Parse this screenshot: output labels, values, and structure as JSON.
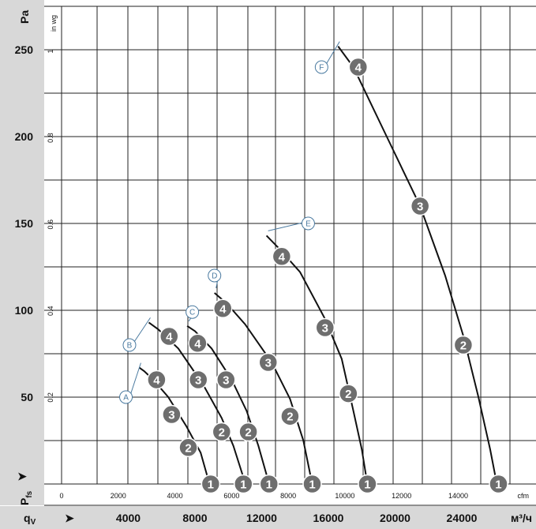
{
  "chart_data": {
    "type": "line",
    "y_axis_left": {
      "unit": "Pa",
      "symbol": "P",
      "subscript": "fs",
      "ticks": [
        50,
        100,
        150,
        200,
        250
      ],
      "range": [
        0,
        275
      ]
    },
    "y_axis_inner": {
      "unit": "in wg",
      "ticks": [
        "0.2",
        "0.4",
        "0.6",
        "0.8",
        "1"
      ]
    },
    "x_axis_inner": {
      "unit": "cfm",
      "ticks": [
        "0",
        "2000",
        "4000",
        "6000",
        "8000",
        "10000",
        "12000",
        "14000"
      ]
    },
    "x_axis_bottom": {
      "unit": "м³/ч",
      "symbol": "q",
      "subscript": "V",
      "ticks": [
        "4000",
        "8000",
        "12000",
        "16000",
        "20000",
        "24000"
      ],
      "range": [
        0,
        25000
      ]
    },
    "series": [
      {
        "name": "A",
        "points": [
          [
            4660,
            67
          ],
          [
            4950,
            65
          ],
          [
            5500,
            60
          ],
          [
            6400,
            50
          ],
          [
            7500,
            33
          ],
          [
            8340,
            18
          ],
          [
            8870,
            0
          ]
        ],
        "markers": [
          {
            "label": "4",
            "x": 5700,
            "y": 60
          },
          {
            "label": "3",
            "x": 6600,
            "y": 40
          },
          {
            "label": "2",
            "x": 7600,
            "y": 21
          },
          {
            "label": "1",
            "x": 8940,
            "y": 0
          }
        ]
      },
      {
        "name": "B",
        "points": [
          [
            5230,
            93
          ],
          [
            5800,
            89
          ],
          [
            7000,
            78
          ],
          [
            8500,
            57
          ],
          [
            9600,
            38
          ],
          [
            10300,
            22
          ],
          [
            11030,
            0
          ]
        ],
        "markers": [
          {
            "label": "4",
            "x": 6450,
            "y": 85
          },
          {
            "label": "3",
            "x": 8200,
            "y": 60
          },
          {
            "label": "2",
            "x": 9600,
            "y": 30
          },
          {
            "label": "1",
            "x": 10900,
            "y": 0
          }
        ]
      },
      {
        "name": "C",
        "points": [
          [
            7530,
            91
          ],
          [
            8000,
            88
          ],
          [
            9000,
            78
          ],
          [
            10200,
            60
          ],
          [
            11100,
            42
          ],
          [
            11800,
            22
          ],
          [
            12450,
            0
          ]
        ],
        "markers": [
          {
            "label": "4",
            "x": 8160,
            "y": 81
          },
          {
            "label": "3",
            "x": 9860,
            "y": 60
          },
          {
            "label": "2",
            "x": 11200,
            "y": 30
          },
          {
            "label": "1",
            "x": 12440,
            "y": 0
          }
        ]
      },
      {
        "name": "D",
        "points": [
          [
            9170,
            110
          ],
          [
            9900,
            104
          ],
          [
            11000,
            92
          ],
          [
            12600,
            70
          ],
          [
            13700,
            49
          ],
          [
            14500,
            25
          ],
          [
            15030,
            0
          ]
        ],
        "markers": [
          {
            "label": "4",
            "x": 9670,
            "y": 101
          },
          {
            "label": "3",
            "x": 12390,
            "y": 70
          },
          {
            "label": "2",
            "x": 13700,
            "y": 39
          },
          {
            "label": "1",
            "x": 15030,
            "y": 0
          }
        ]
      },
      {
        "name": "E",
        "points": [
          [
            12290,
            143
          ],
          [
            13000,
            136
          ],
          [
            14300,
            122
          ],
          [
            15800,
            95
          ],
          [
            16800,
            72
          ],
          [
            17500,
            42
          ],
          [
            18000,
            20
          ],
          [
            18340,
            0
          ]
        ],
        "markers": [
          {
            "label": "4",
            "x": 13200,
            "y": 131
          },
          {
            "label": "3",
            "x": 15800,
            "y": 90
          },
          {
            "label": "2",
            "x": 17200,
            "y": 52
          },
          {
            "label": "1",
            "x": 18340,
            "y": 0
          }
        ]
      },
      {
        "name": "F",
        "points": [
          [
            16580,
            252
          ],
          [
            17500,
            240
          ],
          [
            19500,
            200
          ],
          [
            21500,
            160
          ],
          [
            23000,
            120
          ],
          [
            24100,
            85
          ],
          [
            25000,
            50
          ],
          [
            25700,
            20
          ],
          [
            26100,
            0
          ]
        ],
        "markers": [
          {
            "label": "4",
            "x": 17790,
            "y": 240
          },
          {
            "label": "3",
            "x": 21500,
            "y": 160
          },
          {
            "label": "2",
            "x": 24090,
            "y": 80
          },
          {
            "label": "1",
            "x": 26200,
            "y": 0
          }
        ]
      }
    ],
    "letter_labels": [
      {
        "label": "A",
        "x": 3860,
        "y": 50
      },
      {
        "label": "B",
        "x": 4070,
        "y": 80
      },
      {
        "label": "C",
        "x": 7840,
        "y": 99
      },
      {
        "label": "D",
        "x": 9170,
        "y": 120
      },
      {
        "label": "E",
        "x": 14790,
        "y": 150
      },
      {
        "label": "F",
        "x": 15590,
        "y": 240
      }
    ],
    "grid": true,
    "legend": "none"
  }
}
